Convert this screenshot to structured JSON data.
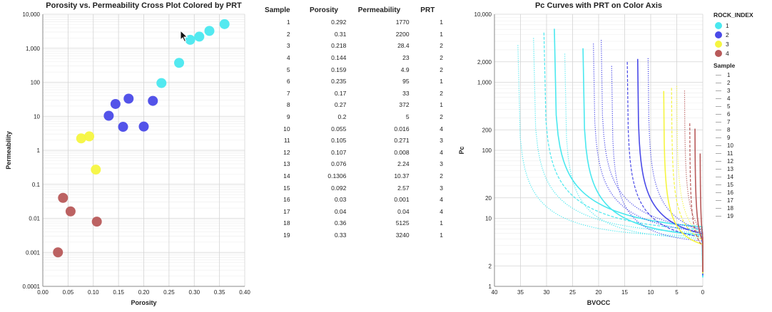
{
  "chart_data": [
    {
      "type": "scatter",
      "title": "Porosity vs. Permeability Cross Plot Colored by PRT",
      "xlabel": "Porosity",
      "ylabel": "Permeability",
      "xlim": [
        0,
        0.4
      ],
      "ylim": [
        0.0001,
        10000
      ],
      "y_scale": "log",
      "x_ticks": [
        "0.00",
        "0.05",
        "0.10",
        "0.15",
        "0.20",
        "0.25",
        "0.30",
        "0.35",
        "0.40"
      ],
      "y_ticks": [
        "0.0001",
        "0.001",
        "0.01",
        "0.1",
        "1",
        "10",
        "100",
        "1,000",
        "10,000"
      ],
      "grid": true,
      "prt_colors": {
        "1": "#4ae8ef",
        "2": "#4a4ae8",
        "3": "#f5f540",
        "4": "#b85a5a"
      },
      "points": [
        {
          "x": 0.292,
          "y": 1770,
          "prt": 1
        },
        {
          "x": 0.31,
          "y": 2200,
          "prt": 1
        },
        {
          "x": 0.218,
          "y": 28.4,
          "prt": 2
        },
        {
          "x": 0.144,
          "y": 23,
          "prt": 2
        },
        {
          "x": 0.159,
          "y": 4.9,
          "prt": 2
        },
        {
          "x": 0.235,
          "y": 95,
          "prt": 1
        },
        {
          "x": 0.17,
          "y": 33,
          "prt": 2
        },
        {
          "x": 0.27,
          "y": 372,
          "prt": 1
        },
        {
          "x": 0.2,
          "y": 5,
          "prt": 2
        },
        {
          "x": 0.055,
          "y": 0.016,
          "prt": 4
        },
        {
          "x": 0.105,
          "y": 0.271,
          "prt": 3
        },
        {
          "x": 0.107,
          "y": 0.008,
          "prt": 4
        },
        {
          "x": 0.076,
          "y": 2.24,
          "prt": 3
        },
        {
          "x": 0.1306,
          "y": 10.37,
          "prt": 2
        },
        {
          "x": 0.092,
          "y": 2.57,
          "prt": 3
        },
        {
          "x": 0.03,
          "y": 0.001,
          "prt": 4
        },
        {
          "x": 0.04,
          "y": 0.04,
          "prt": 4
        },
        {
          "x": 0.36,
          "y": 5125,
          "prt": 1
        },
        {
          "x": 0.33,
          "y": 3240,
          "prt": 1
        }
      ]
    },
    {
      "type": "table",
      "columns": [
        "Sample",
        "Porosity",
        "Permeability",
        "PRT"
      ],
      "rows": [
        [
          "1",
          "0.292",
          "1770",
          "1"
        ],
        [
          "2",
          "0.31",
          "2200",
          "1"
        ],
        [
          "3",
          "0.218",
          "28.4",
          "2"
        ],
        [
          "4",
          "0.144",
          "23",
          "2"
        ],
        [
          "5",
          "0.159",
          "4.9",
          "2"
        ],
        [
          "6",
          "0.235",
          "95",
          "1"
        ],
        [
          "7",
          "0.17",
          "33",
          "2"
        ],
        [
          "8",
          "0.27",
          "372",
          "1"
        ],
        [
          "9",
          "0.2",
          "5",
          "2"
        ],
        [
          "10",
          "0.055",
          "0.016",
          "4"
        ],
        [
          "11",
          "0.105",
          "0.271",
          "3"
        ],
        [
          "12",
          "0.107",
          "0.008",
          "4"
        ],
        [
          "13",
          "0.076",
          "2.24",
          "3"
        ],
        [
          "14",
          "0.1306",
          "10.37",
          "2"
        ],
        [
          "15",
          "0.092",
          "2.57",
          "3"
        ],
        [
          "16",
          "0.03",
          "0.001",
          "4"
        ],
        [
          "17",
          "0.04",
          "0.04",
          "4"
        ],
        [
          "18",
          "0.36",
          "5125",
          "1"
        ],
        [
          "19",
          "0.33",
          "3240",
          "1"
        ]
      ]
    },
    {
      "type": "line",
      "title": "Pc Curves with PRT on Color Axis",
      "xlabel": "BVOCC",
      "ylabel": "Pc",
      "xlim": [
        40,
        0
      ],
      "x_reversed": true,
      "ylim": [
        1,
        10000
      ],
      "y_scale": "log",
      "x_ticks": [
        "40",
        "35",
        "30",
        "25",
        "20",
        "15",
        "10",
        "5",
        "0"
      ],
      "y_ticks": [
        "1",
        "2",
        "10",
        "20",
        "100",
        "200",
        "1,000",
        "2,000",
        "10,000"
      ],
      "grid": true,
      "legend_placement": "right",
      "legend_color_title": "ROCK_INDEX",
      "legend_color_entries": [
        "1",
        "2",
        "3",
        "4"
      ],
      "legend_sample_title": "Sample",
      "legend_sample_entries": [
        "1",
        "2",
        "3",
        "4",
        "5",
        "6",
        "7",
        "8",
        "9",
        "10",
        "11",
        "12",
        "13",
        "14",
        "15",
        "16",
        "17",
        "18",
        "19"
      ],
      "curves": [
        {
          "sample": 18,
          "prt": 1,
          "bv_asymptote": 35.5,
          "dash": "dot"
        },
        {
          "sample": 19,
          "prt": 1,
          "bv_asymptote": 32.5,
          "dash": "dot"
        },
        {
          "sample": 2,
          "prt": 1,
          "bv_asymptote": 30.5,
          "dash": "dash"
        },
        {
          "sample": 1,
          "prt": 1,
          "bv_asymptote": 28.5,
          "dash": "solid"
        },
        {
          "sample": 8,
          "prt": 1,
          "bv_asymptote": 26.5,
          "dash": "dot"
        },
        {
          "sample": 6,
          "prt": 1,
          "bv_asymptote": 23.0,
          "dash": "solid"
        },
        {
          "sample": 3,
          "prt": 2,
          "bv_asymptote": 21.0,
          "dash": "dot"
        },
        {
          "sample": 9,
          "prt": 2,
          "bv_asymptote": 19.5,
          "dash": "dot"
        },
        {
          "sample": 7,
          "prt": 2,
          "bv_asymptote": 17.5,
          "dash": "dot"
        },
        {
          "sample": 4,
          "prt": 2,
          "bv_asymptote": 14.5,
          "dash": "dash"
        },
        {
          "sample": 5,
          "prt": 2,
          "bv_asymptote": 12.5,
          "dash": "solid"
        },
        {
          "sample": 14,
          "prt": 2,
          "bv_asymptote": 10.5,
          "dash": "dot"
        },
        {
          "sample": 13,
          "prt": 3,
          "bv_asymptote": 7.5,
          "dash": "solid"
        },
        {
          "sample": 11,
          "prt": 3,
          "bv_asymptote": 6.0,
          "dash": "dash"
        },
        {
          "sample": 15,
          "prt": 3,
          "bv_asymptote": 5.0,
          "dash": "dot"
        },
        {
          "sample": 10,
          "prt": 4,
          "bv_asymptote": 3.5,
          "dash": "dot"
        },
        {
          "sample": 17,
          "prt": 4,
          "bv_asymptote": 2.5,
          "dash": "dash"
        },
        {
          "sample": 12,
          "prt": 4,
          "bv_asymptote": 1.5,
          "dash": "solid"
        },
        {
          "sample": 16,
          "prt": 4,
          "bv_asymptote": 0.5,
          "dash": "solid"
        }
      ]
    }
  ]
}
